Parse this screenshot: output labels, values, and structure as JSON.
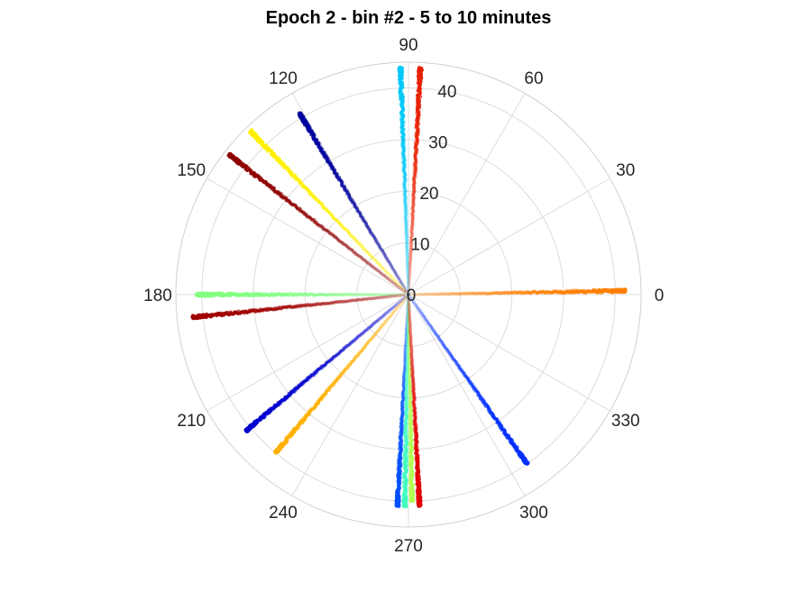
{
  "chart_data": {
    "type": "scatter",
    "subtype": "polar",
    "title": "Epoch 2 - bin #2 - 5 to 10 minutes",
    "theta_ticks": [
      "0",
      "30",
      "60",
      "90",
      "120",
      "150",
      "180",
      "210",
      "240",
      "270",
      "300",
      "330"
    ],
    "theta_tick_values": [
      0,
      30,
      60,
      90,
      120,
      150,
      180,
      210,
      240,
      270,
      300,
      330
    ],
    "r_ticks": [
      "0",
      "10",
      "20",
      "30",
      "40"
    ],
    "r_tick_values": [
      0,
      10,
      20,
      30,
      40
    ],
    "rlim": [
      0,
      45
    ],
    "theta_unit": "degrees",
    "grid": true,
    "series": [
      {
        "theta": 1,
        "r_max": 42,
        "color": "#ff7f00"
      },
      {
        "theta": 87,
        "r_max": 44,
        "color": "#e82000"
      },
      {
        "theta": 92,
        "r_max": 44,
        "color": "#00c8f8"
      },
      {
        "theta": 121,
        "r_max": 41,
        "color": "#00009f"
      },
      {
        "theta": 134,
        "r_max": 44,
        "color": "#fff000"
      },
      {
        "theta": 142,
        "r_max": 44,
        "color": "#8f0000"
      },
      {
        "theta": 180,
        "r_max": 41,
        "color": "#80ff80"
      },
      {
        "theta": 186,
        "r_max": 42,
        "color": "#a00000"
      },
      {
        "theta": 220,
        "r_max": 41,
        "color": "#0000cf"
      },
      {
        "theta": 230,
        "r_max": 40,
        "color": "#ffb000"
      },
      {
        "theta": 267,
        "r_max": 41,
        "color": "#0050ff"
      },
      {
        "theta": 269,
        "r_max": 41,
        "color": "#40ffbf"
      },
      {
        "theta": 271,
        "r_max": 40,
        "color": "#b0ff50"
      },
      {
        "theta": 273,
        "r_max": 41,
        "color": "#e00000"
      },
      {
        "theta": 305,
        "r_max": 40,
        "color": "#0030ff"
      }
    ]
  }
}
